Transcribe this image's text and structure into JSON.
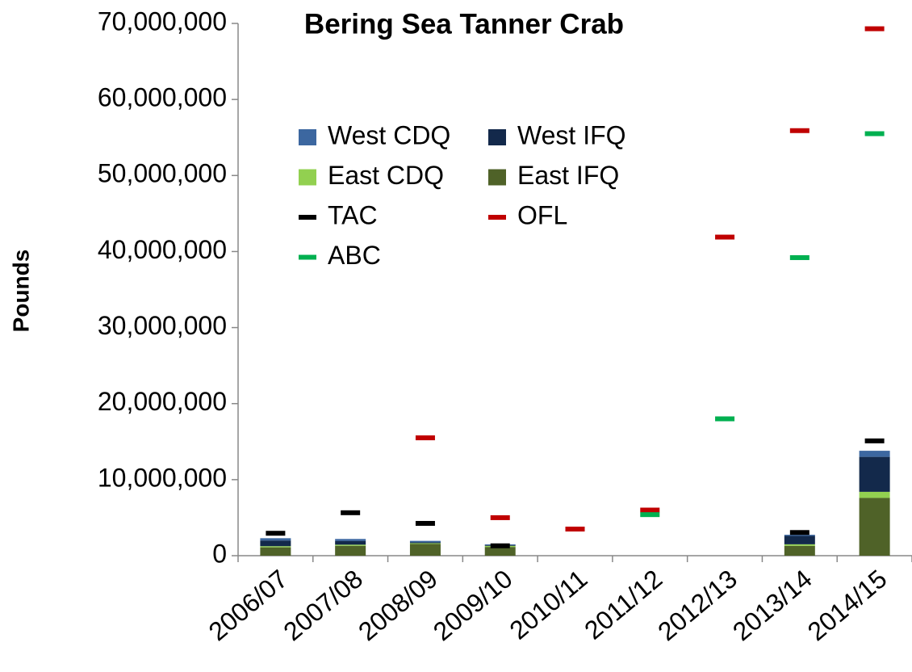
{
  "chart_data": {
    "type": "bar",
    "title": "Bering Sea Tanner Crab",
    "y_label": "Pounds",
    "stacked": true,
    "categories": [
      "2006/07",
      "2007/08",
      "2008/09",
      "2009/10",
      "2010/11",
      "2011/12",
      "2012/13",
      "2013/14",
      "2014/15"
    ],
    "series": [
      {
        "name": "East IFQ",
        "type": "bar",
        "color": "#4f6228",
        "values": [
          1100000,
          1300000,
          1550000,
          1150000,
          null,
          null,
          null,
          1300000,
          7600000
        ]
      },
      {
        "name": "East CDQ",
        "type": "bar",
        "color": "#92d050",
        "values": [
          150000,
          150000,
          100000,
          150000,
          null,
          null,
          null,
          200000,
          800000
        ]
      },
      {
        "name": "West IFQ",
        "type": "bar",
        "color": "#13294b",
        "values": [
          750000,
          500000,
          100000,
          100000,
          null,
          null,
          null,
          1100000,
          4600000
        ]
      },
      {
        "name": "West CDQ",
        "type": "bar",
        "color": "#3c67a0",
        "values": [
          300000,
          250000,
          200000,
          100000,
          null,
          null,
          null,
          150000,
          800000
        ]
      },
      {
        "name": "TAC",
        "type": "dash",
        "color": "#000000",
        "values": [
          2950000,
          5650000,
          4250000,
          1300000,
          null,
          null,
          null,
          3050000,
          15100000
        ]
      },
      {
        "name": "OFL",
        "type": "dash",
        "color": "#c00000",
        "values": [
          null,
          null,
          15500000,
          5000000,
          3500000,
          6000000,
          41900000,
          55900000,
          69300000
        ]
      },
      {
        "name": "ABC",
        "type": "dash",
        "color": "#00b050",
        "values": [
          null,
          null,
          null,
          null,
          null,
          5400000,
          18000000,
          39200000,
          55500000
        ]
      }
    ],
    "ylim": [
      0,
      70000000
    ],
    "yticks": [
      0,
      {
        "value": 10000000,
        "label": "10,000,000"
      },
      {
        "value": 20000000,
        "label": "20,000,000"
      },
      {
        "value": 30000000,
        "label": "30,000,000"
      },
      {
        "value": 40000000,
        "label": "40,000,000"
      },
      {
        "value": 50000000,
        "label": "50,000,000"
      },
      {
        "value": 60000000,
        "label": "60,000,000"
      },
      {
        "value": 70000000,
        "label": "70,000,000"
      }
    ],
    "grid": false
  }
}
